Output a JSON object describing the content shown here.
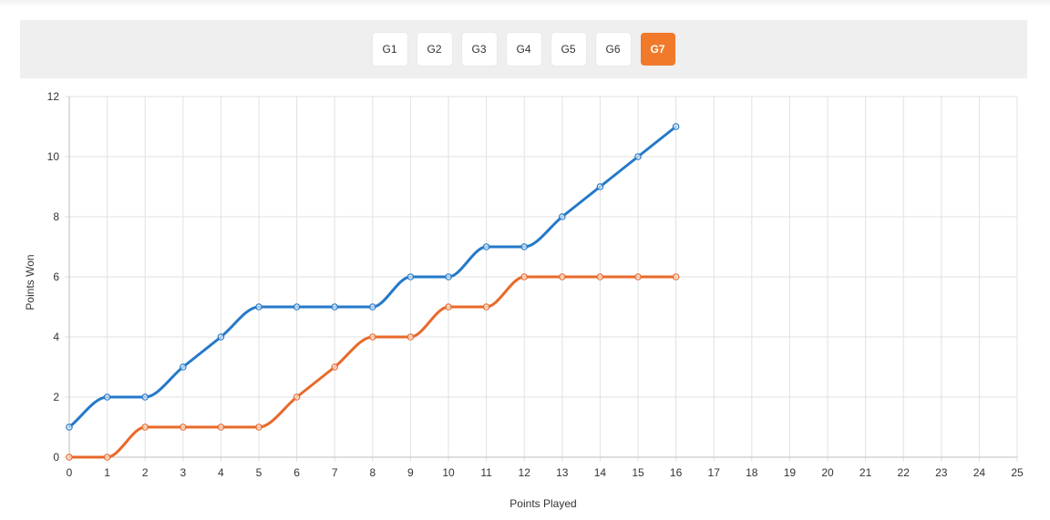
{
  "games": {
    "buttons": [
      "G1",
      "G2",
      "G3",
      "G4",
      "G5",
      "G6",
      "G7"
    ],
    "active_index": 6,
    "active_color": "#f07a2a"
  },
  "chart_data": {
    "type": "line",
    "title": "",
    "xlabel": "Points Played",
    "ylabel": "Points Won",
    "xlim": [
      0,
      25
    ],
    "ylim": [
      0,
      12
    ],
    "x_ticks": [
      0,
      1,
      2,
      3,
      4,
      5,
      6,
      7,
      8,
      9,
      10,
      11,
      12,
      13,
      14,
      15,
      16,
      17,
      18,
      19,
      20,
      21,
      22,
      23,
      24,
      25
    ],
    "y_ticks": [
      0,
      2,
      4,
      6,
      8,
      10,
      12
    ],
    "grid": true,
    "legend": "none",
    "smooth": true,
    "series": [
      {
        "color": "#2479c9",
        "x": [
          0,
          1,
          2,
          3,
          4,
          5,
          6,
          7,
          8,
          9,
          10,
          11,
          12,
          13,
          14,
          15,
          16
        ],
        "values": [
          1,
          2,
          2,
          3,
          4,
          5,
          5,
          5,
          5,
          6,
          6,
          7,
          7,
          8,
          9,
          10,
          11
        ]
      },
      {
        "color": "#e8692a",
        "x": [
          0,
          1,
          2,
          3,
          4,
          5,
          6,
          7,
          8,
          9,
          10,
          11,
          12,
          13,
          14,
          15,
          16
        ],
        "values": [
          0,
          0,
          1,
          1,
          1,
          1,
          2,
          3,
          4,
          4,
          5,
          5,
          6,
          6,
          6,
          6,
          6
        ]
      }
    ]
  }
}
